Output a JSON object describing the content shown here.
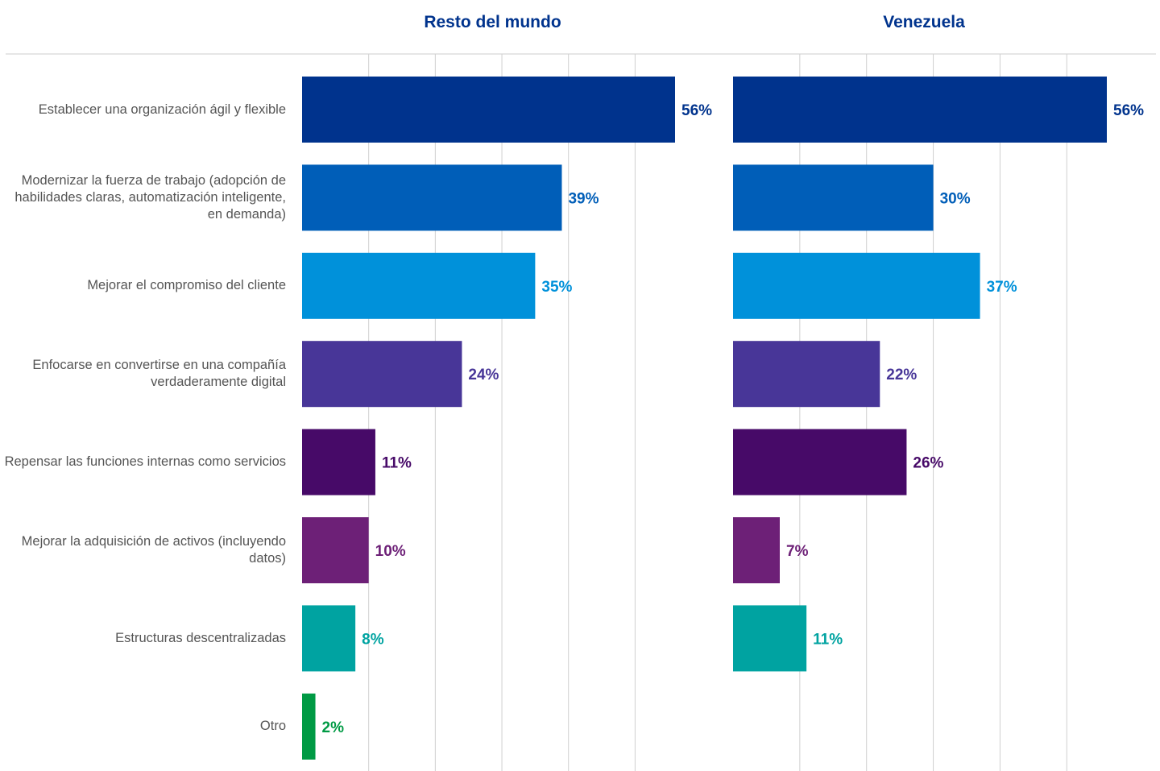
{
  "chart_data": [
    {
      "type": "bar",
      "orientation": "horizontal",
      "title": "Resto del mundo",
      "categories": [
        "Establecer una organización ágil y flexible",
        "Modernizar la fuerza de trabajo (adopción de habilidades claras, automatización inteligente, en demanda)",
        "Mejorar el compromiso del cliente",
        "Enfocarse en convertirse en una compañía verdaderamente digital",
        "Repensar las funciones internas como servicios",
        "Mejorar la adquisición de activos (incluyendo datos)",
        "Estructuras descentralizadas",
        "Otro"
      ],
      "values": [
        56,
        39,
        35,
        24,
        11,
        10,
        8,
        2
      ],
      "value_labels": [
        "56%",
        "39%",
        "35%",
        "24%",
        "11%",
        "10%",
        "8%",
        "2%"
      ],
      "colors": [
        "#00338d",
        "#005eb8",
        "#0091da",
        "#483698",
        "#470a68",
        "#6d2077",
        "#00a3a1",
        "#009a44"
      ],
      "xlim": [
        0,
        56
      ],
      "xticks": [
        10,
        20,
        30,
        40,
        50
      ],
      "grid": true
    },
    {
      "type": "bar",
      "orientation": "horizontal",
      "title": "Venezuela",
      "values": [
        56,
        30,
        37,
        22,
        26,
        7,
        11
      ],
      "value_labels": [
        "56%",
        "30%",
        "37%",
        "22%",
        "26%",
        "7%",
        "11%"
      ],
      "colors": [
        "#00338d",
        "#005eb8",
        "#0091da",
        "#483698",
        "#470a68",
        "#6d2077",
        "#00a3a1"
      ],
      "xlim": [
        0,
        56
      ],
      "xticks": [
        10,
        20,
        30,
        40,
        50
      ],
      "grid": true
    }
  ]
}
